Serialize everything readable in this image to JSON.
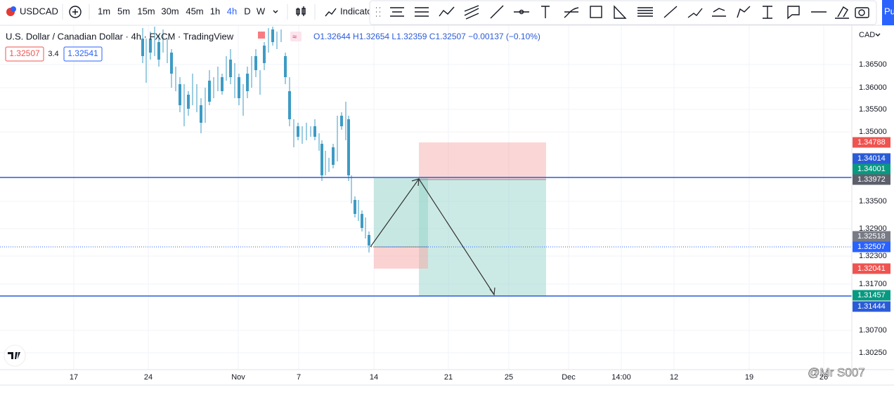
{
  "toolbar": {
    "symbol": "USDCAD",
    "timeframes": [
      "1m",
      "5m",
      "15m",
      "30m",
      "45m",
      "1h",
      "4h",
      "D",
      "W"
    ],
    "indicators": "Indicato",
    "publish": "Pu"
  },
  "legend": {
    "title": "U.S. Dollar / Canadian Dollar · 4h · FXCM · TradingView",
    "ohlc": "O1.32644 H1.32654 L1.32359 C1.32507 −0.00137 (−0.10%)",
    "bid": "1.32507",
    "spread": "3.4",
    "ask": "1.32541"
  },
  "price_axis": {
    "currency": "CAD",
    "ticks": [
      "1.36500",
      "1.36000",
      "1.35500",
      "1.35000",
      "1.33500",
      "1.32900",
      "1.32300",
      "1.31700",
      "1.30700",
      "1.30250"
    ],
    "labels": [
      "1.34788",
      "1.34014",
      "1.34001",
      "1.33972",
      "1.32518",
      "1.32507",
      "1.32041",
      "1.31457",
      "1.31444"
    ]
  },
  "time_axis": {
    "labels": [
      "17",
      "24",
      "Nov",
      "7",
      "14",
      "21",
      "25",
      "Dec",
      "14:00",
      "12",
      "19",
      "26"
    ]
  },
  "watermark": "@Mr S007"
}
